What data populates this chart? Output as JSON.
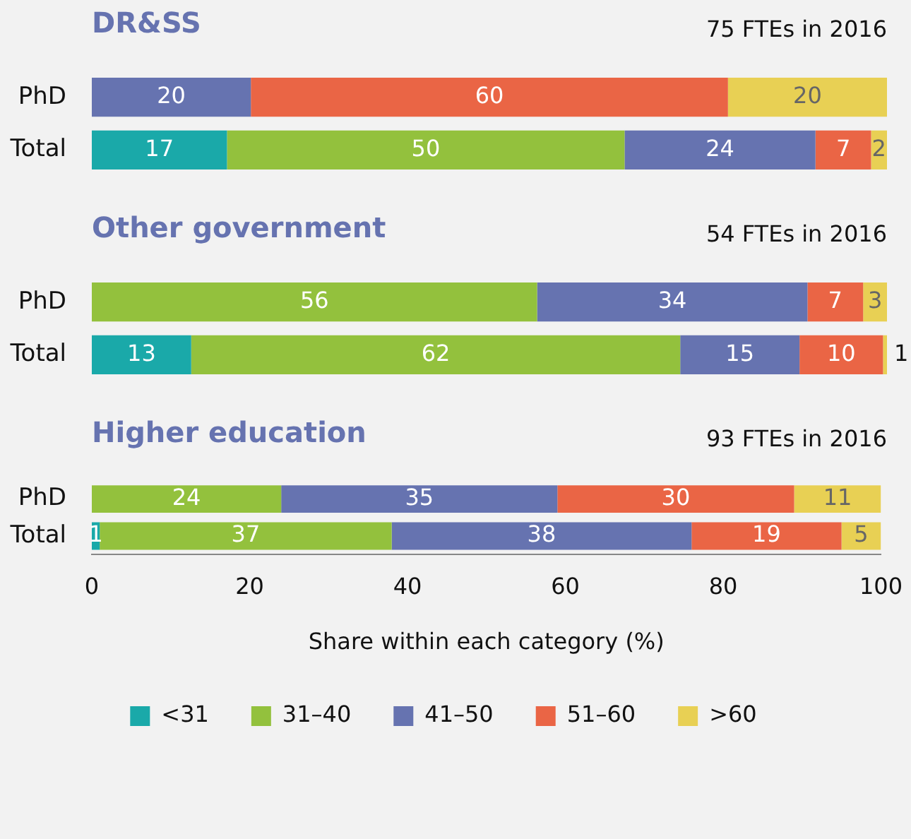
{
  "chart_data": [
    {
      "type": "bar",
      "orientation": "horizontal",
      "stacked": true,
      "title": "DR&SS",
      "annotations": [
        "75 FTEs in 2016"
      ],
      "categories": [
        "PhD",
        "Total"
      ],
      "xlim": [
        0,
        100
      ],
      "xticks": [
        0,
        20,
        40,
        60,
        80,
        100
      ],
      "tick_labels": "y",
      "grid": false,
      "legend": false,
      "data_labels": true,
      "series": [
        {
          "color": "#1aa9a9",
          "values": [
            null,
            17
          ]
        },
        {
          "color": "#93c13d",
          "values": [
            null,
            50
          ]
        },
        {
          "color": "#6673b0",
          "values": [
            20,
            24
          ]
        },
        {
          "color": "#ea6545",
          "values": [
            60,
            7
          ]
        },
        {
          "color": "#e8d054",
          "values": [
            20,
            2
          ]
        }
      ]
    },
    {
      "type": "bar",
      "orientation": "horizontal",
      "stacked": true,
      "title": "Other government",
      "annotations": [
        "54 FTEs in 2016"
      ],
      "categories": [
        "PhD",
        "Total"
      ],
      "xlim": [
        0,
        100
      ],
      "xticks": [
        0,
        20,
        40,
        60,
        80,
        100
      ],
      "tick_labels": "y",
      "grid": false,
      "legend": false,
      "series": [
        {
          "color": "#1aa9a9",
          "values": [
            null,
            12.5
          ],
          "value_labels": [
            null,
            "13"
          ]
        },
        {
          "color": "#93c13d",
          "values": [
            56,
            61.5
          ],
          "value_labels": [
            "56",
            "62"
          ]
        },
        {
          "color": "#6673b0",
          "values": [
            34,
            15
          ],
          "value_labels": [
            "34",
            "15"
          ]
        },
        {
          "color": "#ea6545",
          "values": [
            7,
            10.5
          ],
          "value_labels": [
            "7",
            "10"
          ]
        },
        {
          "color": "#e8d054",
          "values": [
            3,
            0.5
          ],
          "value_labels": [
            "3",
            "1"
          ]
        }
      ]
    },
    {
      "type": "bar",
      "orientation": "horizontal",
      "stacked": true,
      "title": "Higher education",
      "annotations": [
        "93 FTEs in 2016"
      ],
      "categories": [
        "PhD",
        "Total"
      ],
      "xlim": [
        0,
        100
      ],
      "xticks": [
        0,
        20,
        40,
        60,
        80,
        100
      ],
      "xlabel": "Share within each category (%)",
      "grid": false,
      "legend": "bottom",
      "data_labels": true,
      "series": [
        {
          "name": "<31",
          "color": "#1aa9a9",
          "values": [
            null,
            1
          ]
        },
        {
          "name": "31–40",
          "color": "#93c13d",
          "values": [
            24,
            37
          ]
        },
        {
          "name": "41–50",
          "color": "#6673b0",
          "values": [
            35,
            38
          ]
        },
        {
          "name": "51–60",
          "color": "#ea6545",
          "values": [
            30,
            19
          ]
        },
        {
          "name": ">60",
          "color": "#e8d054",
          "values": [
            11,
            5
          ]
        }
      ]
    }
  ]
}
